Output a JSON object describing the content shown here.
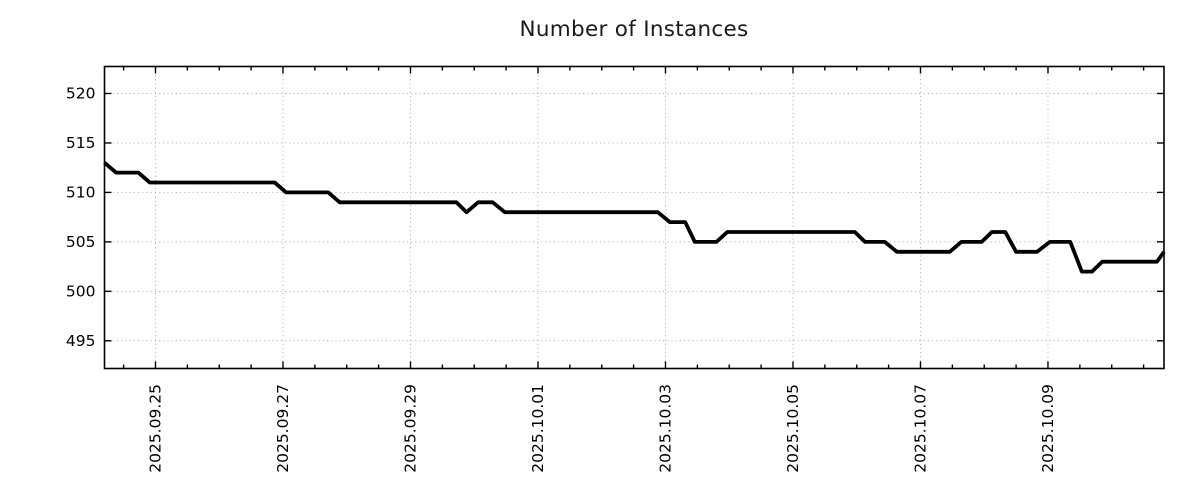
{
  "page": {
    "background": "#ffffff"
  },
  "chart_data": {
    "type": "line",
    "title": "Number of Instances",
    "legend": "none",
    "grid": {
      "show": true,
      "color": "#a9a9a9",
      "style": "dotted"
    },
    "x_axis": {
      "kind": "date",
      "tick_label_rotation_deg": 90,
      "range_days_from_first_tick": [
        -0.8,
        15.82
      ],
      "minor_tick_interval_days": 0.5,
      "major_ticks": [
        {
          "day": 0,
          "label": "2025.09.25"
        },
        {
          "day": 2,
          "label": "2025.09.27"
        },
        {
          "day": 4,
          "label": "2025.09.29"
        },
        {
          "day": 6,
          "label": "2025.10.01"
        },
        {
          "day": 8,
          "label": "2025.10.03"
        },
        {
          "day": 10,
          "label": "2025.10.05"
        },
        {
          "day": 12,
          "label": "2025.10.07"
        },
        {
          "day": 14,
          "label": "2025.10.09"
        }
      ]
    },
    "y_axis": {
      "range": [
        492.2,
        522.73
      ],
      "major_ticks": [
        495,
        500,
        505,
        510,
        515,
        520
      ]
    },
    "series": [
      {
        "color": "#000000",
        "points_day_value": [
          [
            -0.8,
            513
          ],
          [
            -0.62,
            512
          ],
          [
            -0.27,
            512
          ],
          [
            -0.09,
            511
          ],
          [
            1.87,
            511
          ],
          [
            2.05,
            510
          ],
          [
            2.71,
            510
          ],
          [
            2.89,
            509
          ],
          [
            4.72,
            509
          ],
          [
            4.88,
            508
          ],
          [
            5.06,
            509
          ],
          [
            5.29,
            509
          ],
          [
            5.48,
            508
          ],
          [
            7.88,
            508
          ],
          [
            8.07,
            507
          ],
          [
            8.31,
            507
          ],
          [
            8.46,
            505
          ],
          [
            8.8,
            505
          ],
          [
            8.97,
            506
          ],
          [
            10.97,
            506
          ],
          [
            11.13,
            505
          ],
          [
            11.44,
            505
          ],
          [
            11.63,
            504
          ],
          [
            12.46,
            504
          ],
          [
            12.64,
            505
          ],
          [
            12.96,
            505
          ],
          [
            13.12,
            506
          ],
          [
            13.33,
            506
          ],
          [
            13.5,
            504
          ],
          [
            13.83,
            504
          ],
          [
            14.03,
            505
          ],
          [
            14.35,
            505
          ],
          [
            14.53,
            502
          ],
          [
            14.69,
            502
          ],
          [
            14.85,
            503
          ],
          [
            15.71,
            503
          ],
          [
            15.82,
            504
          ]
        ]
      }
    ]
  }
}
